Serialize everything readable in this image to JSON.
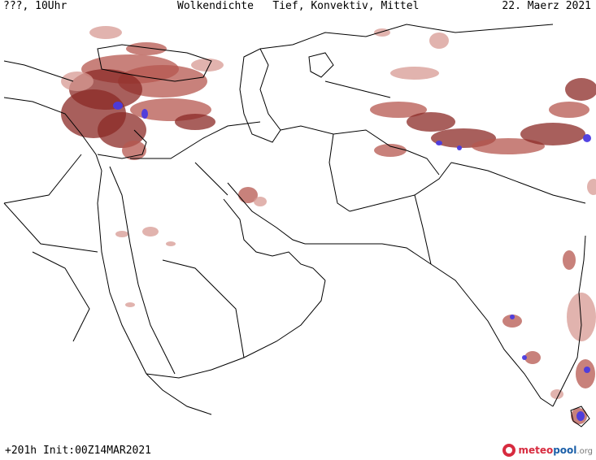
{
  "header": {
    "left": "???, 10Uhr",
    "title": "Wolkendichte   Tief, Konvektiv, Mittel",
    "date": "22. Maerz 2021"
  },
  "footer": {
    "run": "+201h Init:00Z14MAR2021",
    "logo_main": "meteo",
    "logo_accent": "pool",
    "logo_tld": ".org"
  },
  "colors": {
    "cloud_dense": "#8b2a26",
    "cloud_medium": "#b5574f",
    "cloud_light": "#d79a93",
    "convective": "#4a3ae0",
    "border": "#000000"
  }
}
